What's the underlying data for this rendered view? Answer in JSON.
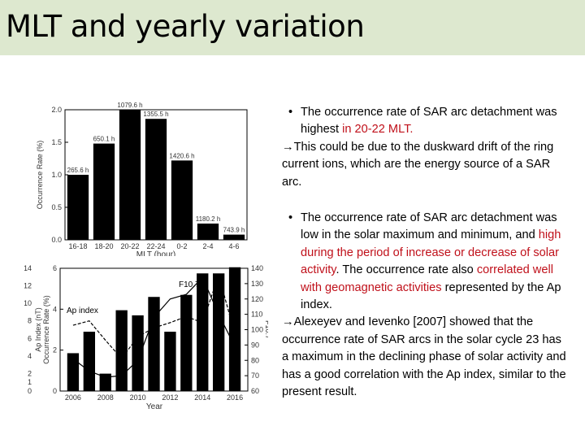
{
  "title": "MLT and yearly variation",
  "paragraph1": {
    "bullet": [
      {
        "text": "The occurrence rate of SAR arc detachment was highest ",
        "red": false
      },
      {
        "text": "in 20-22 MLT.",
        "red": true
      }
    ],
    "arrow": "→",
    "follow": "This could be due to the duskward drift of the ring current ions, which are the energy source of a SAR arc."
  },
  "paragraph2": {
    "bullet": [
      {
        "text": "The occurrence rate of SAR arc detachment was low in the solar maximum and minimum, and ",
        "red": false
      },
      {
        "text": "high during the period of increase or decrease of solar activity",
        "red": true
      },
      {
        "text": ". The occurrence rate also ",
        "red": false
      },
      {
        "text": "correlated well with geomagnetic activities",
        "red": true
      },
      {
        "text": " represented by the Ap index.",
        "red": false
      }
    ],
    "arrow": "→",
    "follow": "Alexeyev and Ievenko [2007] showed that the occurrence rate of SAR arcs in the solar cycle 23 has a maximum in the declining phase of solar activity and has a good correlation with the Ap index, similar to the present result."
  },
  "chart_data": [
    {
      "type": "bar",
      "categories": [
        "16-18",
        "18-20",
        "20-22",
        "22-24",
        "0-2",
        "2-4",
        "4-6"
      ],
      "values": [
        1.0,
        1.48,
        2.0,
        1.86,
        1.22,
        0.25,
        0.08
      ],
      "data_labels": [
        "265.6 h",
        "650.1 h",
        "1079.6 h",
        "1355.5 h",
        "1420.6 h",
        "1180.2 h",
        "743.9 h"
      ],
      "xlabel": "MLT (hour)",
      "ylabel": "Occurrence Rate (%)",
      "ylim": [
        0,
        2.0
      ],
      "yticks": [
        "0.0",
        "0.5",
        "1.0",
        "1.5",
        "2.0"
      ]
    },
    {
      "type": "bar",
      "x": [
        2006,
        2007,
        2008,
        2009,
        2010,
        2011,
        2012,
        2013,
        2014,
        2015,
        2016
      ],
      "values": [
        1.85,
        2.9,
        0.85,
        3.95,
        3.7,
        4.6,
        2.9,
        4.7,
        5.75,
        5.75,
        6.05
      ],
      "xlabel": "Year",
      "xticks": [
        "2006",
        "2008",
        "2010",
        "2012",
        "2014",
        "2016"
      ],
      "ylabel": "Occurrence Rate (%)",
      "ylim": [
        0,
        6
      ],
      "yticks": [
        "0",
        "2",
        "4",
        "6"
      ],
      "ylabel_left": "Ap Index (nT)",
      "yticks_left": [
        "0",
        "1",
        "2",
        "4",
        "6",
        "8",
        "10",
        "12",
        "14"
      ],
      "ylabel_right": "F10.7",
      "yticks_right": [
        "60",
        "70",
        "80",
        "90",
        "100",
        "110",
        "120",
        "130",
        "140"
      ],
      "series": [
        {
          "name": "F10.7",
          "values": [
            81,
            73,
            69,
            70,
            80,
            108,
            120,
            123,
            134,
            110,
            89
          ]
        },
        {
          "name": "Ap index",
          "values": [
            7.5,
            8.0,
            5.8,
            3.7,
            6.2,
            7.2,
            7.8,
            8.5,
            7.8,
            13.2,
            6.5
          ]
        }
      ]
    }
  ]
}
